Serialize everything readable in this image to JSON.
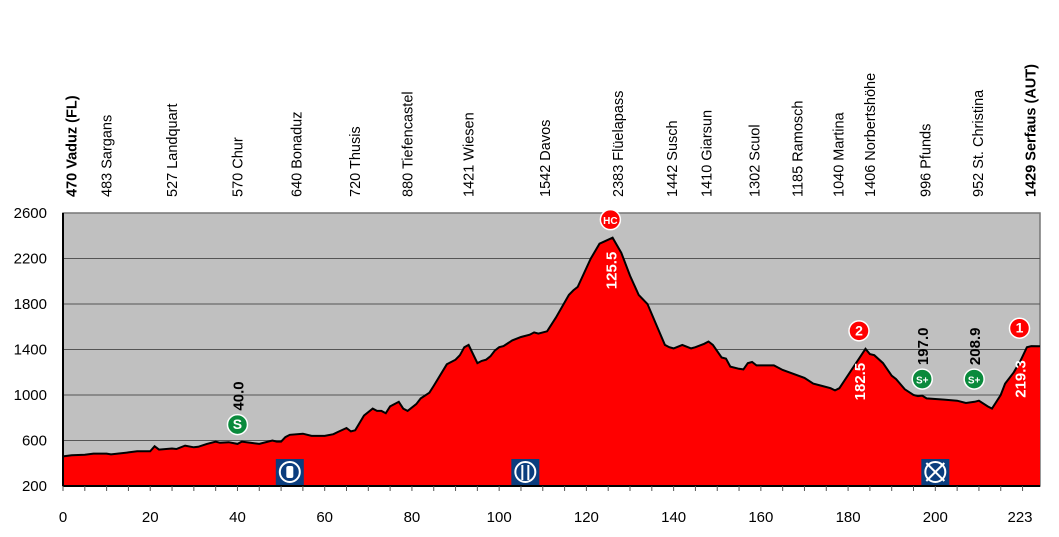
{
  "chart_data": {
    "type": "area",
    "title": "",
    "xlabel": "",
    "ylabel": "",
    "xlim": [
      0,
      224
    ],
    "ylim": [
      200,
      2600
    ],
    "grid": true,
    "x_ticks": [
      0,
      20,
      40,
      60,
      80,
      100,
      120,
      140,
      160,
      180,
      200
    ],
    "x_end_label": "223",
    "y_ticks": [
      200,
      600,
      1000,
      1400,
      1800,
      2200,
      2600
    ],
    "colors": {
      "fill": "#ff0000",
      "background": "#c0c0c0",
      "line": "#000000",
      "sprint": "#0a8a3c",
      "climb": "#ff0000",
      "service": "#0b3d7e"
    },
    "profile": [
      [
        0,
        460
      ],
      [
        2,
        470
      ],
      [
        5,
        475
      ],
      [
        7,
        485
      ],
      [
        10,
        485
      ],
      [
        11,
        478
      ],
      [
        15,
        495
      ],
      [
        17,
        505
      ],
      [
        20,
        505
      ],
      [
        21,
        550
      ],
      [
        22,
        520
      ],
      [
        25,
        530
      ],
      [
        26,
        525
      ],
      [
        28,
        555
      ],
      [
        30,
        540
      ],
      [
        31,
        545
      ],
      [
        33,
        570
      ],
      [
        35,
        590
      ],
      [
        36,
        580
      ],
      [
        38,
        585
      ],
      [
        40,
        570
      ],
      [
        41,
        590
      ],
      [
        43,
        580
      ],
      [
        45,
        570
      ],
      [
        48,
        600
      ],
      [
        49,
        590
      ],
      [
        50,
        590
      ],
      [
        51,
        630
      ],
      [
        52,
        650
      ],
      [
        55,
        660
      ],
      [
        57,
        640
      ],
      [
        60,
        640
      ],
      [
        62,
        655
      ],
      [
        63,
        675
      ],
      [
        65,
        710
      ],
      [
        66,
        680
      ],
      [
        67,
        690
      ],
      [
        69,
        820
      ],
      [
        71,
        880
      ],
      [
        72,
        860
      ],
      [
        73,
        860
      ],
      [
        74,
        840
      ],
      [
        75,
        900
      ],
      [
        77,
        940
      ],
      [
        78,
        880
      ],
      [
        79,
        860
      ],
      [
        81,
        920
      ],
      [
        82,
        970
      ],
      [
        84,
        1020
      ],
      [
        85,
        1080
      ],
      [
        88,
        1270
      ],
      [
        90,
        1310
      ],
      [
        91,
        1350
      ],
      [
        92,
        1420
      ],
      [
        93,
        1440
      ],
      [
        95,
        1280
      ],
      [
        96,
        1300
      ],
      [
        97,
        1310
      ],
      [
        98,
        1340
      ],
      [
        99,
        1390
      ],
      [
        100,
        1420
      ],
      [
        101,
        1430
      ],
      [
        103,
        1480
      ],
      [
        105,
        1510
      ],
      [
        107,
        1530
      ],
      [
        108,
        1550
      ],
      [
        109,
        1540
      ],
      [
        111,
        1560
      ],
      [
        113,
        1680
      ],
      [
        116,
        1880
      ],
      [
        117,
        1920
      ],
      [
        118,
        1950
      ],
      [
        121,
        2200
      ],
      [
        123,
        2330
      ],
      [
        126,
        2383
      ],
      [
        128,
        2250
      ],
      [
        130,
        2050
      ],
      [
        132,
        1880
      ],
      [
        134,
        1800
      ],
      [
        136,
        1620
      ],
      [
        138,
        1440
      ],
      [
        139,
        1420
      ],
      [
        140,
        1410
      ],
      [
        142,
        1440
      ],
      [
        144,
        1410
      ],
      [
        145,
        1420
      ],
      [
        147,
        1450
      ],
      [
        148,
        1470
      ],
      [
        149,
        1440
      ],
      [
        151,
        1330
      ],
      [
        152,
        1320
      ],
      [
        153,
        1250
      ],
      [
        155,
        1230
      ],
      [
        156,
        1225
      ],
      [
        157,
        1280
      ],
      [
        158,
        1290
      ],
      [
        159,
        1260
      ],
      [
        163,
        1260
      ],
      [
        165,
        1220
      ],
      [
        170,
        1150
      ],
      [
        172,
        1100
      ],
      [
        174,
        1080
      ],
      [
        176,
        1060
      ],
      [
        177,
        1040
      ],
      [
        178,
        1060
      ],
      [
        184,
        1406
      ],
      [
        185,
        1360
      ],
      [
        186,
        1350
      ],
      [
        188,
        1280
      ],
      [
        190,
        1170
      ],
      [
        191,
        1140
      ],
      [
        193,
        1050
      ],
      [
        195,
        1000
      ],
      [
        196,
        990
      ],
      [
        197,
        995
      ],
      [
        198,
        970
      ],
      [
        202,
        960
      ],
      [
        205,
        950
      ],
      [
        207,
        930
      ],
      [
        209,
        940
      ],
      [
        210,
        950
      ],
      [
        212,
        900
      ],
      [
        213,
        880
      ],
      [
        215,
        1000
      ],
      [
        216,
        1100
      ],
      [
        218,
        1200
      ],
      [
        219.5,
        1300
      ],
      [
        221,
        1420
      ],
      [
        222,
        1430
      ],
      [
        224,
        1429
      ]
    ],
    "places": [
      {
        "km": 2,
        "label": "470 Vaduz (FL)",
        "bold": true
      },
      {
        "km": 10,
        "label": "483 Sargans"
      },
      {
        "km": 25,
        "label": "527 Landquart"
      },
      {
        "km": 40,
        "label": "570 Chur"
      },
      {
        "km": 53.5,
        "label": "640 Bonaduz"
      },
      {
        "km": 67,
        "label": "720 Thusis"
      },
      {
        "km": 79,
        "label": "880 Tiefencastel"
      },
      {
        "km": 93,
        "label": "1421 Wiesen"
      },
      {
        "km": 110.5,
        "label": "1542 Davos"
      },
      {
        "km": 127.3,
        "label": "2383 Flüelapass"
      },
      {
        "km": 139.6,
        "label": "1442 Susch"
      },
      {
        "km": 147.5,
        "label": "1410 Giarsun"
      },
      {
        "km": 158.5,
        "label": "1302 Scuol"
      },
      {
        "km": 168.4,
        "label": "1185 Ramosch"
      },
      {
        "km": 177.8,
        "label": "1040 Martina"
      },
      {
        "km": 185,
        "label": "1406 Norbertshöhe"
      },
      {
        "km": 197.7,
        "label": "996 Pfunds"
      },
      {
        "km": 209.8,
        "label": "952 St. Christina"
      },
      {
        "km": 221.8,
        "label": "1429 Serfaus (AUT)",
        "bold": true
      }
    ],
    "climbs": [
      {
        "km": 125.5,
        "badge": "HC",
        "alt": 2383,
        "label": "125.5"
      },
      {
        "km": 182.5,
        "badge": "2",
        "alt": 1406,
        "label": "182.5"
      },
      {
        "km": 219.3,
        "badge": "1",
        "alt": 1429,
        "label": "219.3"
      }
    ],
    "sprints": [
      {
        "km": 40.0,
        "badge": "S",
        "label": "40.0",
        "alt": 740
      },
      {
        "km": 197.0,
        "badge": "S+",
        "label": "197.0",
        "alt": 1140
      },
      {
        "km": 208.9,
        "badge": "S+",
        "label": "208.9",
        "alt": 1140
      }
    ],
    "services": [
      {
        "km": 52,
        "icon": "water-bottle-icon"
      },
      {
        "km": 106,
        "icon": "feed-zone-icon"
      },
      {
        "km": 200,
        "icon": "no-littering-zone-icon"
      }
    ]
  }
}
